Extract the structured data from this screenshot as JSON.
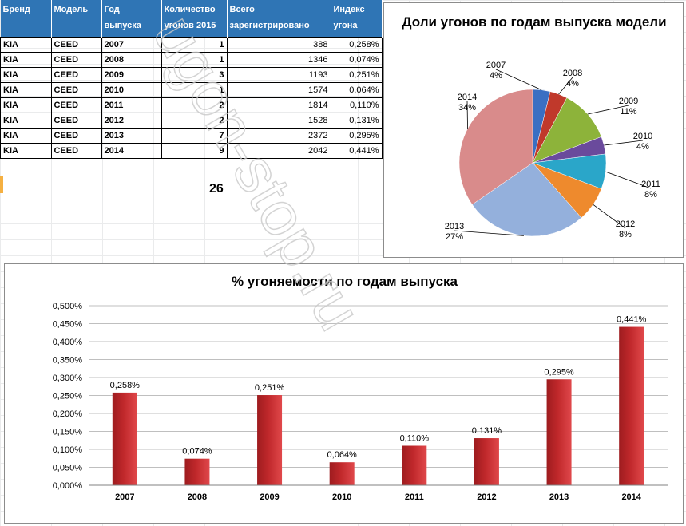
{
  "table": {
    "headers": [
      "Бренд",
      "Модель",
      "Год выпуска",
      "Количество угонов 2015",
      "Всего зарегистрировано",
      "Индекс угона"
    ],
    "rows": [
      [
        "KIA",
        "CEED",
        "2007",
        "1",
        "388",
        "0,258%"
      ],
      [
        "KIA",
        "CEED",
        "2008",
        "1",
        "1346",
        "0,074%"
      ],
      [
        "KIA",
        "CEED",
        "2009",
        "3",
        "1193",
        "0,251%"
      ],
      [
        "KIA",
        "CEED",
        "2010",
        "1",
        "1574",
        "0,064%"
      ],
      [
        "KIA",
        "CEED",
        "2011",
        "2",
        "1814",
        "0,110%"
      ],
      [
        "KIA",
        "CEED",
        "2012",
        "2",
        "1528",
        "0,131%"
      ],
      [
        "KIA",
        "CEED",
        "2013",
        "7",
        "2372",
        "0,295%"
      ],
      [
        "KIA",
        "CEED",
        "2014",
        "9",
        "2042",
        "0,441%"
      ]
    ],
    "total": "26"
  },
  "watermark": "ugon-stop.ru",
  "chart_data": [
    {
      "type": "pie",
      "title": "Доли угонов по годам выпуска модели",
      "categories": [
        "2007",
        "2008",
        "2009",
        "2010",
        "2011",
        "2012",
        "2013",
        "2014"
      ],
      "values": [
        1,
        1,
        3,
        1,
        2,
        2,
        7,
        9
      ],
      "labels": [
        "4%",
        "4%",
        "11%",
        "4%",
        "8%",
        "8%",
        "27%",
        "34%"
      ],
      "colors": [
        "#3a6fc3",
        "#c0392b",
        "#8db33a",
        "#6a4a9c",
        "#2aa6c9",
        "#ee8a2d",
        "#94b0dc",
        "#d98b8b"
      ]
    },
    {
      "type": "bar",
      "title": "% угоняемости по годам выпуска",
      "categories": [
        "2007",
        "2008",
        "2009",
        "2010",
        "2011",
        "2012",
        "2013",
        "2014"
      ],
      "values": [
        0.258,
        0.074,
        0.251,
        0.064,
        0.11,
        0.131,
        0.295,
        0.441
      ],
      "labels": [
        "0,258%",
        "0,074%",
        "0,251%",
        "0,064%",
        "0,110%",
        "0,131%",
        "0,295%",
        "0,441%"
      ],
      "yticks": [
        "0,000%",
        "0,050%",
        "0,100%",
        "0,150%",
        "0,200%",
        "0,250%",
        "0,300%",
        "0,350%",
        "0,400%",
        "0,450%",
        "0,500%"
      ],
      "ylim": [
        0,
        0.5
      ],
      "bar_color": "#c0282b",
      "grid": true
    }
  ]
}
